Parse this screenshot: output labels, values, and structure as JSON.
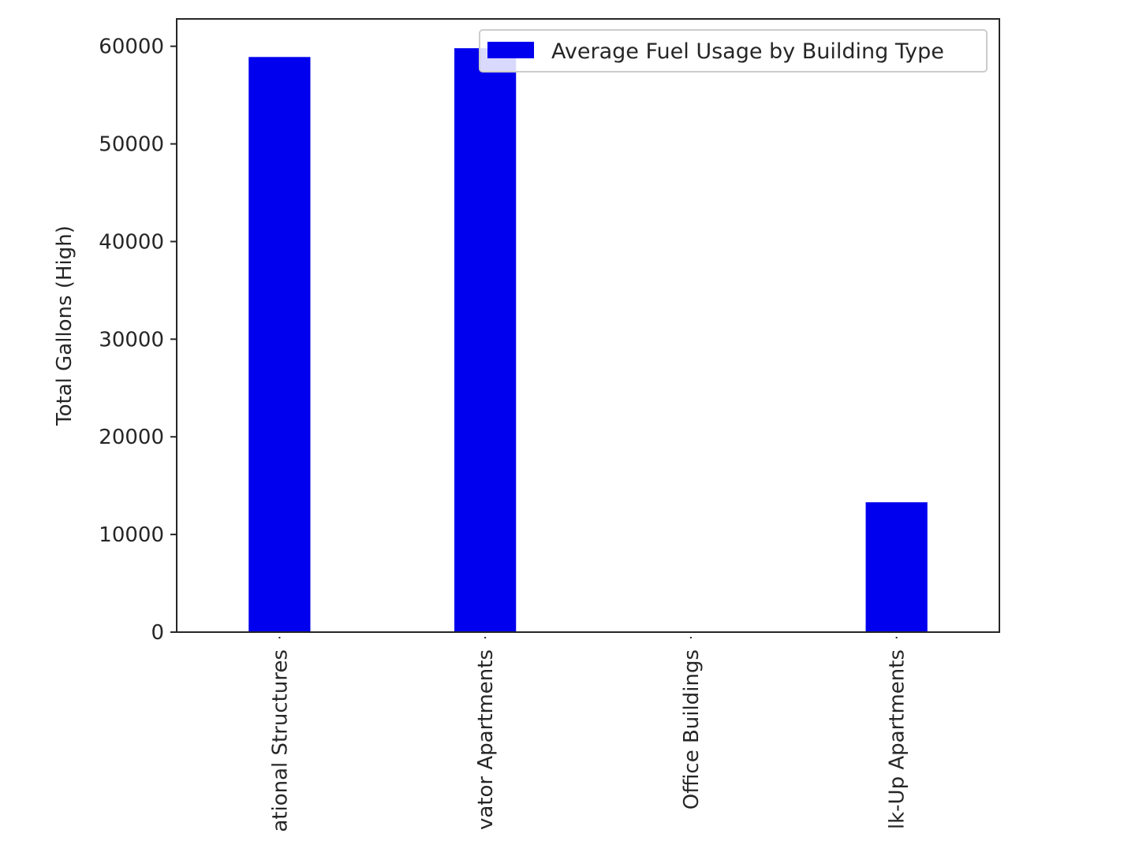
{
  "chart_data": {
    "type": "bar",
    "categories": [
      "ational Structures",
      "vator Apartments",
      "Office Buildings",
      "lk-Up Apartments"
    ],
    "series": [
      {
        "name": "Average Fuel Usage by Building Type",
        "values": [
          58900,
          59800,
          0,
          13300
        ]
      }
    ],
    "title": "",
    "xlabel": "",
    "ylabel": "Total Gallons (High)",
    "ylim": [
      0,
      62800
    ],
    "yticks": [
      0,
      10000,
      20000,
      30000,
      40000,
      50000,
      60000
    ],
    "grid": false,
    "legend_position": "top-right",
    "colors": {
      "bar": "#0000ee",
      "axes": "#262626",
      "legend_border": "#cccccc"
    }
  }
}
